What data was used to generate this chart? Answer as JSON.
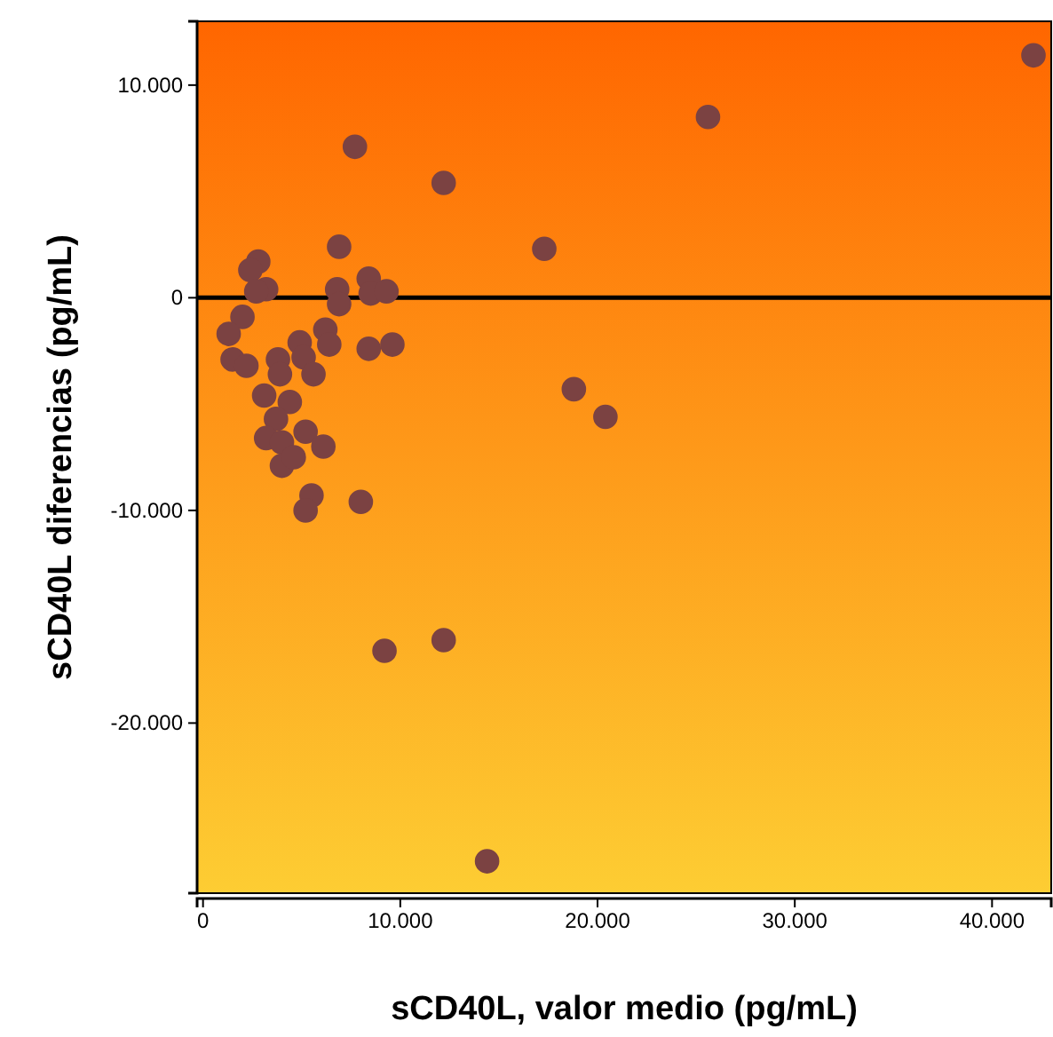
{
  "chart_data": {
    "type": "scatter",
    "xlabel": "sCD40L, valor medio (pg/mL)",
    "ylabel": "sCD40L diferencias (pg/mL)",
    "x": [
      42100,
      25600,
      7700,
      12200,
      6900,
      17300,
      2800,
      2400,
      3200,
      2700,
      6800,
      8400,
      8500,
      9300,
      6900,
      2000,
      1300,
      1500,
      2200,
      6200,
      6400,
      4900,
      5100,
      5600,
      8400,
      9600,
      3800,
      3900,
      3100,
      4400,
      3700,
      3200,
      4000,
      5200,
      6100,
      4000,
      4600,
      5500,
      5200,
      8000,
      18800,
      20400,
      12200,
      9200,
      14400
    ],
    "values": [
      11400,
      8500,
      7100,
      5400,
      2400,
      2300,
      1700,
      1300,
      400,
      300,
      400,
      900,
      200,
      300,
      -300,
      -900,
      -1700,
      -2900,
      -3200,
      -1500,
      -2200,
      -2100,
      -2800,
      -3600,
      -2400,
      -2200,
      -2900,
      -3600,
      -4600,
      -4900,
      -5700,
      -6600,
      -6800,
      -6300,
      -7000,
      -7900,
      -7500,
      -9300,
      -10000,
      -9600,
      -4300,
      -5600,
      -16100,
      -16600,
      -26500
    ],
    "color": "#7b4242",
    "marker": "circle",
    "xlim": [
      -300,
      43000
    ],
    "ylim": [
      -28000,
      13000
    ],
    "xticks": [
      {
        "value": 0,
        "label": "0"
      },
      {
        "value": 10000,
        "label": "10.000"
      },
      {
        "value": 20000,
        "label": "20.000"
      },
      {
        "value": 30000,
        "label": "30.000"
      },
      {
        "value": 40000,
        "label": "40.000"
      }
    ],
    "yticks": [
      {
        "value": -20000,
        "label": "-20.000"
      },
      {
        "value": -10000,
        "label": "-10.000"
      },
      {
        "value": 0,
        "label": "0"
      },
      {
        "value": 10000,
        "label": "10.000"
      }
    ],
    "ref_lines": [
      {
        "axis": "y",
        "value": 0,
        "color": "#000000"
      }
    ],
    "grid": false
  }
}
